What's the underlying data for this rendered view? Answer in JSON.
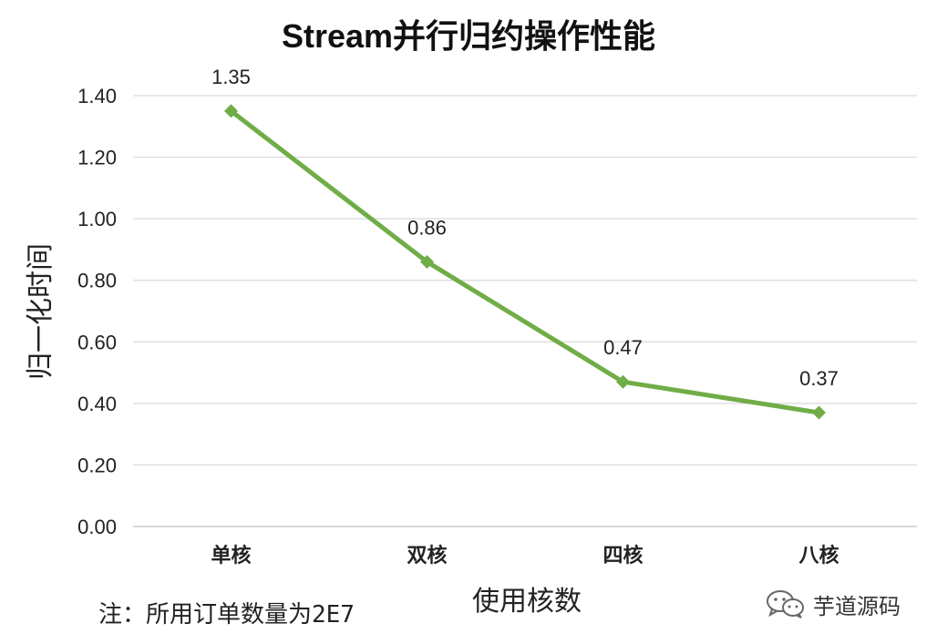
{
  "chart_data": {
    "type": "line",
    "title": "Stream并行归约操作性能",
    "xlabel": "使用核数",
    "ylabel": "归一化时间",
    "categories": [
      "单核",
      "双核",
      "四核",
      "八核"
    ],
    "values": [
      1.35,
      0.86,
      0.47,
      0.37
    ],
    "data_labels": [
      "1.35",
      "0.86",
      "0.47",
      "0.37"
    ],
    "ylim": [
      0,
      1.4
    ],
    "yticks": [
      "0.00",
      "0.20",
      "0.40",
      "0.60",
      "0.80",
      "1.00",
      "1.20",
      "1.40"
    ],
    "grid": true,
    "legend": "none",
    "series_color": "#70AD47"
  },
  "note": "注：所用订单数量为2E7",
  "watermark": {
    "text": "芋道源码",
    "icon": "wechat-icon"
  }
}
